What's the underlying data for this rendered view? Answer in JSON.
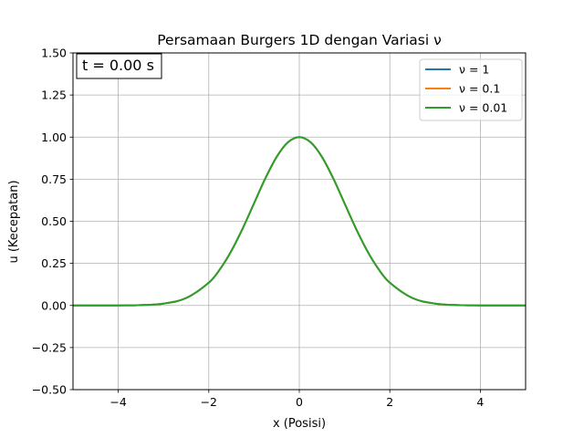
{
  "chart_data": {
    "type": "line",
    "title": "Persamaan Burgers 1D dengan Variasi ν",
    "xlabel": "x (Posisi)",
    "ylabel": "u (Kecepatan)",
    "xlim": [
      -5,
      5
    ],
    "ylim": [
      -0.5,
      1.5
    ],
    "xticks": [
      -4,
      -2,
      0,
      2,
      4
    ],
    "xtick_labels": [
      "−4",
      "−2",
      "0",
      "2",
      "4"
    ],
    "yticks": [
      -0.5,
      -0.25,
      0,
      0.25,
      0.5,
      0.75,
      1.0,
      1.25,
      1.5
    ],
    "ytick_labels": [
      "−0.50",
      "−0.25",
      "0.00",
      "0.25",
      "0.50",
      "0.75",
      "1.00",
      "1.25",
      "1.50"
    ],
    "grid": true,
    "legend_position": "top-right",
    "annotation": "t = 0.00 s",
    "x": [
      -5,
      -4.5,
      -4,
      -3.5,
      -3,
      -2.5,
      -2,
      -1.75,
      -1.5,
      -1.25,
      -1,
      -0.75,
      -0.5,
      -0.25,
      0,
      0.25,
      0.5,
      0.75,
      1,
      1.25,
      1.5,
      1.75,
      2,
      2.5,
      3,
      3.5,
      4,
      4.5,
      5
    ],
    "series": [
      {
        "name": "ν = 1",
        "color": "#1f77b4",
        "values": [
          0.0,
          0.0,
          0.0003,
          0.0022,
          0.0111,
          0.0439,
          0.1353,
          0.2163,
          0.3247,
          0.4578,
          0.6065,
          0.7548,
          0.8825,
          0.9692,
          1.0,
          0.9692,
          0.8825,
          0.7548,
          0.6065,
          0.4578,
          0.3247,
          0.2163,
          0.1353,
          0.0439,
          0.0111,
          0.0022,
          0.0003,
          0.0,
          0.0
        ]
      },
      {
        "name": "ν = 0.1",
        "color": "#ff7f0e",
        "values": [
          0.0,
          0.0,
          0.0003,
          0.0022,
          0.0111,
          0.0439,
          0.1353,
          0.2163,
          0.3247,
          0.4578,
          0.6065,
          0.7548,
          0.8825,
          0.9692,
          1.0,
          0.9692,
          0.8825,
          0.7548,
          0.6065,
          0.4578,
          0.3247,
          0.2163,
          0.1353,
          0.0439,
          0.0111,
          0.0022,
          0.0003,
          0.0,
          0.0
        ]
      },
      {
        "name": "ν = 0.01",
        "color": "#2ca02c",
        "values": [
          0.0,
          0.0,
          0.0003,
          0.0022,
          0.0111,
          0.0439,
          0.1353,
          0.2163,
          0.3247,
          0.4578,
          0.6065,
          0.7548,
          0.8825,
          0.9692,
          1.0,
          0.9692,
          0.8825,
          0.7548,
          0.6065,
          0.4578,
          0.3247,
          0.2163,
          0.1353,
          0.0439,
          0.0111,
          0.0022,
          0.0003,
          0.0,
          0.0
        ]
      }
    ]
  }
}
